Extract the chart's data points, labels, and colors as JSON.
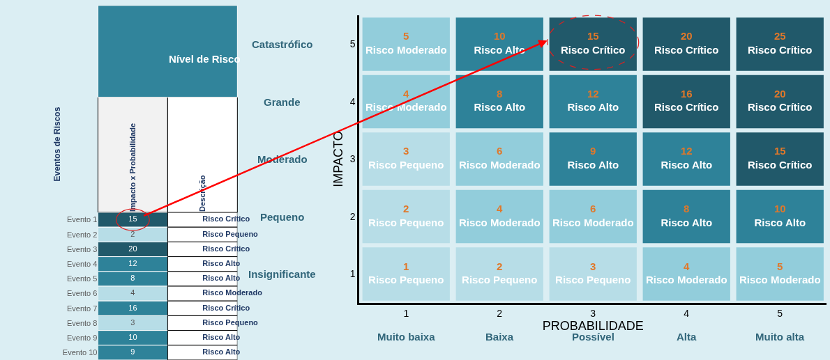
{
  "chart_data": [
    {
      "type": "heatmap",
      "title": "Nível de Risco",
      "ylabel": "Eventos de Riscos",
      "categories": [
        "Impacto x Probabilidade",
        "Descrição"
      ],
      "y_categories": [
        "Evento 1",
        "Evento 2",
        "Evento 3",
        "Evento 4",
        "Evento 5",
        "Evento 6",
        "Evento 7",
        "Evento 8",
        "Evento 9",
        "Evento 10"
      ],
      "cells": [
        [
          15,
          null
        ],
        [
          2,
          null
        ],
        [
          20,
          null
        ],
        [
          12,
          null
        ],
        [
          8,
          null
        ],
        [
          4,
          null
        ],
        [
          16,
          null
        ],
        [
          3,
          null
        ],
        [
          10,
          null
        ],
        [
          9,
          null
        ]
      ],
      "cell_labels": [
        [
          "15",
          "Risco Crítico"
        ],
        [
          "2",
          "Risco Pequeno"
        ],
        [
          "20",
          "Risco Crítico"
        ],
        [
          "12",
          "Risco Alto"
        ],
        [
          "8",
          "Risco Alto"
        ],
        [
          "4",
          "Risco Moderado"
        ],
        [
          "16",
          "Risco Crítico"
        ],
        [
          "3",
          "Risco Pequeno"
        ],
        [
          "10",
          "Risco Alto"
        ],
        [
          "9",
          "Risco Alto"
        ]
      ],
      "colors": [
        [
          "#21596a",
          "#ffffff"
        ],
        [
          "#b7dde7",
          "#ffffff"
        ],
        [
          "#21596a",
          "#ffffff"
        ],
        [
          "#2e8299",
          "#ffffff"
        ],
        [
          "#2e8299",
          "#ffffff"
        ],
        [
          "#b7dde7",
          "#ffffff"
        ],
        [
          "#2e8299",
          "#ffffff"
        ],
        [
          "#b7dde7",
          "#ffffff"
        ],
        [
          "#2e8299",
          "#ffffff"
        ],
        [
          "#2e8299",
          "#ffffff"
        ]
      ]
    },
    {
      "type": "heatmap",
      "xlabel": "PROBABILIDADE",
      "ylabel": "IMPACTO",
      "categories": [
        "1",
        "2",
        "3",
        "4",
        "5"
      ],
      "y_categories": [
        "5",
        "4",
        "3",
        "2",
        "1"
      ],
      "cells": [
        [
          5,
          10,
          15,
          20,
          25
        ],
        [
          4,
          8,
          12,
          16,
          20
        ],
        [
          3,
          6,
          9,
          12,
          15
        ],
        [
          2,
          4,
          6,
          8,
          10
        ],
        [
          1,
          2,
          3,
          4,
          5
        ]
      ],
      "cell_labels": [
        [
          "5\nRisco Moderado",
          "10\nRisco Alto",
          "15\nRisco Crítico",
          "20\nRisco Crítico",
          "25\nRisco Crítico"
        ],
        [
          "4\nRisco Moderado",
          "8\nRisco Alto",
          "12\nRisco Alto",
          "16\nRisco Crítico",
          "20\nRisco Crítico"
        ],
        [
          "3\nRisco Pequeno",
          "6\nRisco Moderado",
          "9\nRisco Alto",
          "12\nRisco Alto",
          "15\nRisco Crítico"
        ],
        [
          "2\nRisco Pequeno",
          "4\nRisco Moderado",
          "6\nRisco Moderado",
          "8\nRisco Alto",
          "10\nRisco Alto"
        ],
        [
          "1\nRisco Pequeno",
          "2\nRisco Pequeno",
          "3\nRisco Pequeno",
          "4\nRisco Moderado",
          "5\nRisco Moderado"
        ]
      ],
      "colors": [
        [
          "#92cddb",
          "#2e8299",
          "#21596a",
          "#21596a",
          "#21596a"
        ],
        [
          "#92cddb",
          "#2e8299",
          "#2e8299",
          "#21596a",
          "#21596a"
        ],
        [
          "#b7dde7",
          "#92cddb",
          "#2e8299",
          "#2e8299",
          "#21596a"
        ],
        [
          "#b7dde7",
          "#92cddb",
          "#92cddb",
          "#2e8299",
          "#2e8299"
        ],
        [
          "#b7dde7",
          "#b7dde7",
          "#b7dde7",
          "#92cddb",
          "#92cddb"
        ]
      ],
      "annotations": [
        "Muito baixa",
        "Baixa",
        "Possível",
        "Alta",
        "Muito alta",
        "Catastrófico",
        "Grande",
        "Moderado",
        "Pequeno",
        "Insignificante"
      ]
    }
  ]
}
